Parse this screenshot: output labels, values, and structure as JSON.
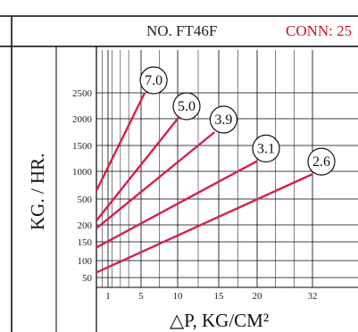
{
  "header": {
    "model": "NO. FT46F",
    "conn": "CONN: 25"
  },
  "chart_data": {
    "type": "line",
    "xlabel": "△P, KG/CM²",
    "ylabel": "KG. / HR.",
    "x_ticks": [
      1,
      5,
      10,
      15,
      20,
      32
    ],
    "y_ticks": [
      50,
      100,
      150,
      200,
      500,
      1000,
      1500,
      2000,
      2500
    ],
    "xlim": [
      0,
      32
    ],
    "grid": true,
    "series": [
      {
        "name": "7.0",
        "x": [
          0,
          5.5
        ],
        "y": [
          650,
          2500
        ]
      },
      {
        "name": "5.0",
        "x": [
          0,
          10
        ],
        "y": [
          250,
          2000
        ]
      },
      {
        "name": "3.9",
        "x": [
          0,
          14.5
        ],
        "y": [
          190,
          1750
        ]
      },
      {
        "name": "3.1",
        "x": [
          0,
          20
        ],
        "y": [
          135,
          1200
        ]
      },
      {
        "name": "2.6",
        "x": [
          0,
          32
        ],
        "y": [
          65,
          950
        ]
      }
    ],
    "colors": {
      "line": "#d6204a",
      "grid": "#000000"
    }
  }
}
